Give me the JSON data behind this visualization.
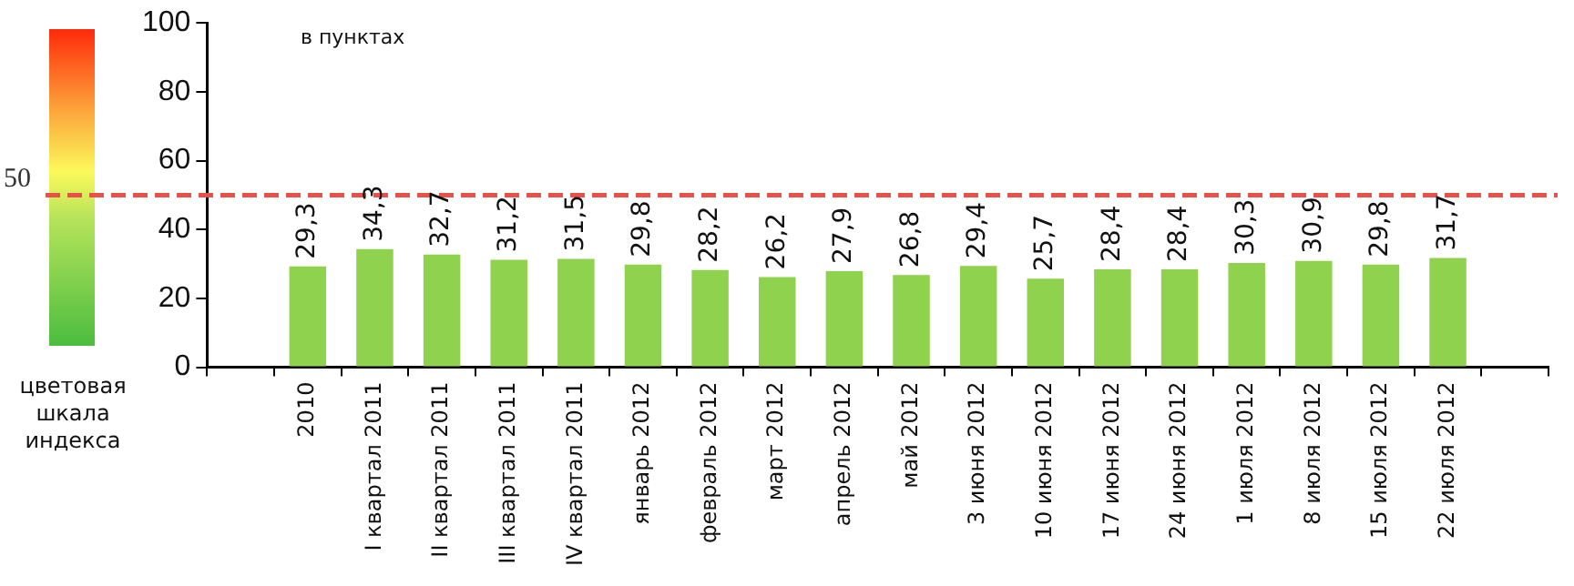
{
  "chart_data": {
    "type": "bar",
    "categories": [
      null,
      "2010",
      "I квартал 2011",
      "II квартал 2011",
      "III квартал 2011",
      "IV квартал 2011",
      "январь 2012",
      "февраль 2012",
      "март 2012",
      "апрель 2012",
      "май 2012",
      "3 июня 2012",
      "10 июня 2012",
      "17 июня 2012",
      "24 июня 2012",
      "1 июля 2012",
      "8 июля 2012",
      "15 июля 2012",
      "22 июля 2012",
      null
    ],
    "values": [
      null,
      29.3,
      34.3,
      32.7,
      31.2,
      31.5,
      29.8,
      28.2,
      26.2,
      27.9,
      26.8,
      29.4,
      25.7,
      28.4,
      28.4,
      30.3,
      30.9,
      29.8,
      31.7,
      null
    ],
    "value_labels": [
      null,
      "29,3",
      "34,3",
      "32,7",
      "31,2",
      "31,5",
      "29,8",
      "28,2",
      "26,2",
      "27,9",
      "26,8",
      "29,4",
      "25,7",
      "28,4",
      "28,4",
      "30,3",
      "30,9",
      "29,8",
      "31,7",
      null
    ],
    "color": "#8fd24e",
    "ylim": [
      0,
      100
    ],
    "yticks": [
      0,
      20,
      40,
      60,
      80,
      100
    ],
    "grid": false,
    "legend": false,
    "ref_lines": [
      {
        "axis": "y",
        "value": 50,
        "label": "50",
        "color": "#e8504a",
        "line_style": "dashed"
      }
    ],
    "annotations": [
      "в пунктах",
      "цветовая шкала индекса"
    ]
  }
}
